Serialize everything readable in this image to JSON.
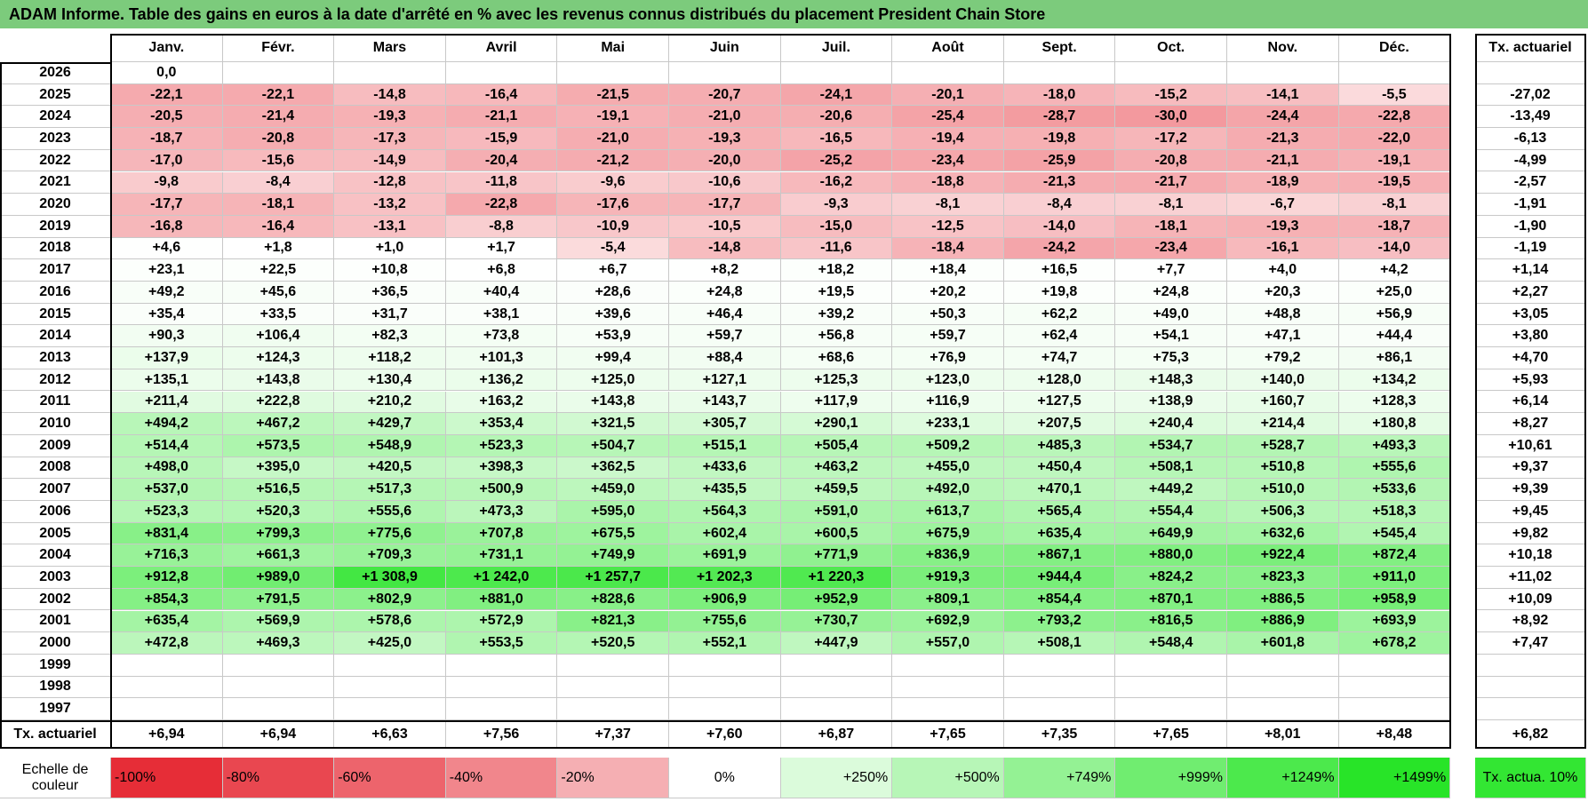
{
  "header": {
    "title": "ADAM Informe. Table des gains en euros à la date d'arrêté en % avec les revenus connus distribués du placement President Chain Store"
  },
  "table": {
    "columns": [
      "Janv.",
      "Févr.",
      "Mars",
      "Avril",
      "Mai",
      "Juin",
      "Juil.",
      "Août",
      "Sept.",
      "Oct.",
      "Nov.",
      "Déc."
    ],
    "rate_header": "Tx. actuariel",
    "rows": [
      {
        "year": "2026",
        "values": [
          "0,0",
          null,
          null,
          null,
          null,
          null,
          null,
          null,
          null,
          null,
          null,
          null
        ],
        "rate": null
      },
      {
        "year": "2025",
        "values": [
          "-22,1",
          "-22,1",
          "-14,8",
          "-16,4",
          "-21,5",
          "-20,7",
          "-24,1",
          "-20,1",
          "-18,0",
          "-15,2",
          "-14,1",
          "-5,5"
        ],
        "rate": "-27,02"
      },
      {
        "year": "2024",
        "values": [
          "-20,5",
          "-21,4",
          "-19,3",
          "-21,1",
          "-19,1",
          "-21,0",
          "-20,6",
          "-25,4",
          "-28,7",
          "-30,0",
          "-24,4",
          "-22,8"
        ],
        "rate": "-13,49"
      },
      {
        "year": "2023",
        "values": [
          "-18,7",
          "-20,8",
          "-17,3",
          "-15,9",
          "-21,0",
          "-19,3",
          "-16,5",
          "-19,4",
          "-19,8",
          "-17,2",
          "-21,3",
          "-22,0"
        ],
        "rate": "-6,13"
      },
      {
        "year": "2022",
        "values": [
          "-17,0",
          "-15,6",
          "-14,9",
          "-20,4",
          "-21,2",
          "-20,0",
          "-25,2",
          "-23,4",
          "-25,9",
          "-20,8",
          "-21,1",
          "-19,1"
        ],
        "rate": "-4,99"
      },
      {
        "year": "2021",
        "values": [
          "-9,8",
          "-8,4",
          "-12,8",
          "-11,8",
          "-9,6",
          "-10,6",
          "-16,2",
          "-18,8",
          "-21,3",
          "-21,7",
          "-18,9",
          "-19,5"
        ],
        "rate": "-2,57"
      },
      {
        "year": "2020",
        "values": [
          "-17,7",
          "-18,1",
          "-13,2",
          "-22,8",
          "-17,6",
          "-17,7",
          "-9,3",
          "-8,1",
          "-8,4",
          "-8,1",
          "-6,7",
          "-8,1"
        ],
        "rate": "-1,91"
      },
      {
        "year": "2019",
        "values": [
          "-16,8",
          "-16,4",
          "-13,1",
          "-8,8",
          "-10,9",
          "-10,5",
          "-15,0",
          "-12,5",
          "-14,0",
          "-18,1",
          "-19,3",
          "-18,7"
        ],
        "rate": "-1,90"
      },
      {
        "year": "2018",
        "values": [
          "+4,6",
          "+1,8",
          "+1,0",
          "+1,7",
          "-5,4",
          "-14,8",
          "-11,6",
          "-18,4",
          "-24,2",
          "-23,4",
          "-16,1",
          "-14,0"
        ],
        "rate": "-1,19"
      },
      {
        "year": "2017",
        "values": [
          "+23,1",
          "+22,5",
          "+10,8",
          "+6,8",
          "+6,7",
          "+8,2",
          "+18,2",
          "+18,4",
          "+16,5",
          "+7,7",
          "+4,0",
          "+4,2"
        ],
        "rate": "+1,14"
      },
      {
        "year": "2016",
        "values": [
          "+49,2",
          "+45,6",
          "+36,5",
          "+40,4",
          "+28,6",
          "+24,8",
          "+19,5",
          "+20,2",
          "+19,8",
          "+24,8",
          "+20,3",
          "+25,0"
        ],
        "rate": "+2,27"
      },
      {
        "year": "2015",
        "values": [
          "+35,4",
          "+33,5",
          "+31,7",
          "+38,1",
          "+39,6",
          "+46,4",
          "+39,2",
          "+50,3",
          "+62,2",
          "+49,0",
          "+48,8",
          "+56,9"
        ],
        "rate": "+3,05"
      },
      {
        "year": "2014",
        "values": [
          "+90,3",
          "+106,4",
          "+82,3",
          "+73,8",
          "+53,9",
          "+59,7",
          "+56,8",
          "+59,7",
          "+62,4",
          "+54,1",
          "+47,1",
          "+44,4"
        ],
        "rate": "+3,80"
      },
      {
        "year": "2013",
        "values": [
          "+137,9",
          "+124,3",
          "+118,2",
          "+101,3",
          "+99,4",
          "+88,4",
          "+68,6",
          "+76,9",
          "+74,7",
          "+75,3",
          "+79,2",
          "+86,1"
        ],
        "rate": "+4,70"
      },
      {
        "year": "2012",
        "values": [
          "+135,1",
          "+143,8",
          "+130,4",
          "+136,2",
          "+125,0",
          "+127,1",
          "+125,3",
          "+123,0",
          "+128,0",
          "+148,3",
          "+140,0",
          "+134,2"
        ],
        "rate": "+5,93"
      },
      {
        "year": "2011",
        "values": [
          "+211,4",
          "+222,8",
          "+210,2",
          "+163,2",
          "+143,8",
          "+143,7",
          "+117,9",
          "+116,9",
          "+127,5",
          "+138,9",
          "+160,7",
          "+128,3"
        ],
        "rate": "+6,14"
      },
      {
        "year": "2010",
        "values": [
          "+494,2",
          "+467,2",
          "+429,7",
          "+353,4",
          "+321,5",
          "+305,7",
          "+290,1",
          "+233,1",
          "+207,5",
          "+240,4",
          "+214,4",
          "+180,8"
        ],
        "rate": "+8,27"
      },
      {
        "year": "2009",
        "values": [
          "+514,4",
          "+573,5",
          "+548,9",
          "+523,3",
          "+504,7",
          "+515,1",
          "+505,4",
          "+509,2",
          "+485,3",
          "+534,7",
          "+528,7",
          "+493,3"
        ],
        "rate": "+10,61"
      },
      {
        "year": "2008",
        "values": [
          "+498,0",
          "+395,0",
          "+420,5",
          "+398,3",
          "+362,5",
          "+433,6",
          "+463,2",
          "+455,0",
          "+450,4",
          "+508,1",
          "+510,8",
          "+555,6"
        ],
        "rate": "+9,37"
      },
      {
        "year": "2007",
        "values": [
          "+537,0",
          "+516,5",
          "+517,3",
          "+500,9",
          "+459,0",
          "+435,5",
          "+459,5",
          "+492,0",
          "+470,1",
          "+449,2",
          "+510,0",
          "+533,6"
        ],
        "rate": "+9,39"
      },
      {
        "year": "2006",
        "values": [
          "+523,3",
          "+520,3",
          "+555,6",
          "+473,3",
          "+595,0",
          "+564,3",
          "+591,0",
          "+613,7",
          "+565,4",
          "+554,4",
          "+506,3",
          "+518,3"
        ],
        "rate": "+9,45"
      },
      {
        "year": "2005",
        "values": [
          "+831,4",
          "+799,3",
          "+775,6",
          "+707,8",
          "+675,5",
          "+602,4",
          "+600,5",
          "+675,9",
          "+635,4",
          "+649,9",
          "+632,6",
          "+545,4"
        ],
        "rate": "+9,82"
      },
      {
        "year": "2004",
        "values": [
          "+716,3",
          "+661,3",
          "+709,3",
          "+731,1",
          "+749,9",
          "+691,9",
          "+771,9",
          "+836,9",
          "+867,1",
          "+880,0",
          "+922,4",
          "+872,4"
        ],
        "rate": "+10,18"
      },
      {
        "year": "2003",
        "values": [
          "+912,8",
          "+989,0",
          "+1 308,9",
          "+1 242,0",
          "+1 257,7",
          "+1 202,3",
          "+1 220,3",
          "+919,3",
          "+944,4",
          "+824,2",
          "+823,3",
          "+911,0"
        ],
        "rate": "+11,02"
      },
      {
        "year": "2002",
        "values": [
          "+854,3",
          "+791,5",
          "+802,9",
          "+881,0",
          "+828,6",
          "+906,9",
          "+952,9",
          "+809,1",
          "+854,4",
          "+870,1",
          "+886,5",
          "+958,9"
        ],
        "rate": "+10,09"
      },
      {
        "year": "2001",
        "values": [
          "+635,4",
          "+569,9",
          "+578,6",
          "+572,9",
          "+821,3",
          "+755,6",
          "+730,7",
          "+692,9",
          "+793,2",
          "+816,5",
          "+886,9",
          "+693,9"
        ],
        "rate": "+8,92"
      },
      {
        "year": "2000",
        "values": [
          "+472,8",
          "+469,3",
          "+425,0",
          "+553,5",
          "+520,5",
          "+552,1",
          "+447,9",
          "+557,0",
          "+508,1",
          "+548,4",
          "+601,8",
          "+678,2"
        ],
        "rate": "+7,47"
      },
      {
        "year": "1999",
        "values": [
          null,
          null,
          null,
          null,
          null,
          null,
          null,
          null,
          null,
          null,
          null,
          null
        ],
        "rate": null
      },
      {
        "year": "1998",
        "values": [
          null,
          null,
          null,
          null,
          null,
          null,
          null,
          null,
          null,
          null,
          null,
          null
        ],
        "rate": null
      },
      {
        "year": "1997",
        "values": [
          null,
          null,
          null,
          null,
          null,
          null,
          null,
          null,
          null,
          null,
          null,
          null
        ],
        "rate": null
      }
    ],
    "footer": {
      "label": "Tx. actuariel",
      "values": [
        "+6,94",
        "+6,94",
        "+6,63",
        "+7,56",
        "+7,37",
        "+7,60",
        "+6,87",
        "+7,65",
        "+7,35",
        "+7,65",
        "+8,01",
        "+8,48"
      ],
      "rate": "+6,82"
    }
  },
  "scale": {
    "label": "Echelle de couleur",
    "items": [
      "-100%",
      "-80%",
      "-60%",
      "-40%",
      "-20%",
      "0%",
      "+250%",
      "+500%",
      "+749%",
      "+999%",
      "+1249%",
      "+1499%"
    ],
    "rate": "Tx. actua. 10%"
  }
}
